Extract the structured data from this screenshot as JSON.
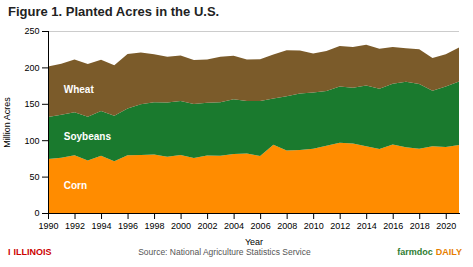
{
  "chart_data": {
    "type": "area",
    "stacked": true,
    "title": "Figure 1. Planted Acres in the U.S.",
    "xlabel": "Year",
    "ylabel": "Million Acres",
    "x": [
      1990,
      1991,
      1992,
      1993,
      1994,
      1995,
      1996,
      1997,
      1998,
      1999,
      2000,
      2001,
      2002,
      2003,
      2004,
      2005,
      2006,
      2007,
      2008,
      2009,
      2010,
      2011,
      2012,
      2013,
      2014,
      2015,
      2016,
      2017,
      2018,
      2019,
      2020,
      2021
    ],
    "series": [
      {
        "name": "Corn",
        "color": "#FF8C00",
        "values": [
          74.2,
          75.9,
          79.3,
          72.2,
          78.5,
          71.2,
          79.2,
          79.5,
          80.2,
          77.4,
          79.6,
          75.7,
          78.9,
          78.8,
          80.9,
          81.8,
          78.3,
          93.6,
          86.0,
          86.5,
          88.2,
          92.3,
          96.4,
          95.4,
          91.6,
          88.0,
          94.0,
          90.2,
          88.1,
          91.7,
          90.8,
          93.4
        ]
      },
      {
        "name": "Soybeans",
        "color": "#1a7a2e",
        "values": [
          57.8,
          59.2,
          59.2,
          60.1,
          61.6,
          62.5,
          64.2,
          70.0,
          72.0,
          74.5,
          74.3,
          74.1,
          72.5,
          73.4,
          75.2,
          72.0,
          75.5,
          63.6,
          74.5,
          77.5,
          77.4,
          75.2,
          77.2,
          76.5,
          83.7,
          82.7,
          83.7,
          90.1,
          89.1,
          76.1,
          83.1,
          87.2
        ]
      },
      {
        "name": "Wheat",
        "color": "#7B5B2A",
        "values": [
          69.4,
          69.9,
          72.2,
          72.2,
          70.3,
          69.1,
          75.1,
          70.8,
          65.8,
          62.7,
          62.6,
          60.3,
          59.6,
          62.3,
          59.8,
          57.2,
          57.3,
          60.5,
          63.2,
          59.2,
          53.6,
          54.9,
          55.7,
          56.2,
          55.8,
          55.0,
          50.2,
          46.1,
          47.8,
          45.2,
          44.3,
          46.7
        ]
      }
    ],
    "xlim": [
      1990,
      2021
    ],
    "xticks": [
      1990,
      1992,
      1994,
      1996,
      1998,
      2000,
      2002,
      2004,
      2006,
      2008,
      2010,
      2012,
      2014,
      2016,
      2018,
      2020
    ],
    "ylim": [
      0,
      250
    ],
    "yticks": [
      0,
      50,
      100,
      150,
      200,
      250
    ],
    "grid": true,
    "annotations": [
      {
        "text": "I",
        "color": "#CC0000"
      },
      {
        "text": "ILLINOIS",
        "color": "#CC0000"
      },
      {
        "text": "Source: National Agriculture Statistics Service",
        "color": "#555555"
      },
      {
        "text": "farmdoc",
        "color": "#2e7d32"
      },
      {
        "text": "DAILY",
        "color": "#e67e00"
      }
    ]
  }
}
